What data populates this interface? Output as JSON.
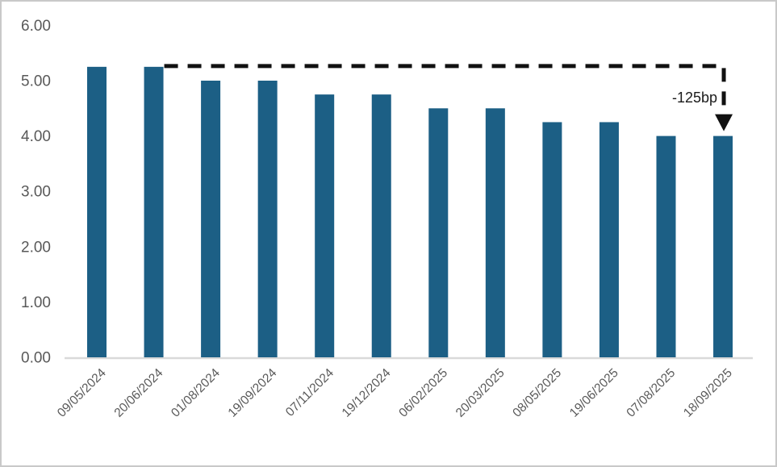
{
  "chart_data": {
    "type": "bar",
    "title": "",
    "xlabel": "",
    "ylabel": "",
    "categories": [
      "09/05/2024",
      "20/06/2024",
      "01/08/2024",
      "19/09/2024",
      "07/11/2024",
      "19/12/2024",
      "06/02/2025",
      "20/03/2025",
      "08/05/2025",
      "19/06/2025",
      "07/08/2025",
      "18/09/2025"
    ],
    "values": [
      5.25,
      5.25,
      5.0,
      5.0,
      4.75,
      4.75,
      4.5,
      4.5,
      4.25,
      4.25,
      4.0,
      4.0
    ],
    "ylim": [
      0,
      6
    ],
    "ytick_labels": [
      "0.00",
      "1.00",
      "2.00",
      "3.00",
      "4.00",
      "5.00",
      "6.00"
    ],
    "grid": false,
    "legend_position": "none",
    "annotation": {
      "label": "-125bp",
      "from_index": 1,
      "to_index": 11,
      "from_value": 5.25,
      "to_value": 4.0,
      "style": "dashed-arrow"
    },
    "colors": {
      "bar": "#1C5F85",
      "axis_text": "#595959",
      "baseline": "#D9D9D9",
      "annotation_line": "#111111",
      "annotation_text": "#1A1A1A",
      "frame_border": "#C9C9C9",
      "background": "#FFFFFF"
    }
  }
}
